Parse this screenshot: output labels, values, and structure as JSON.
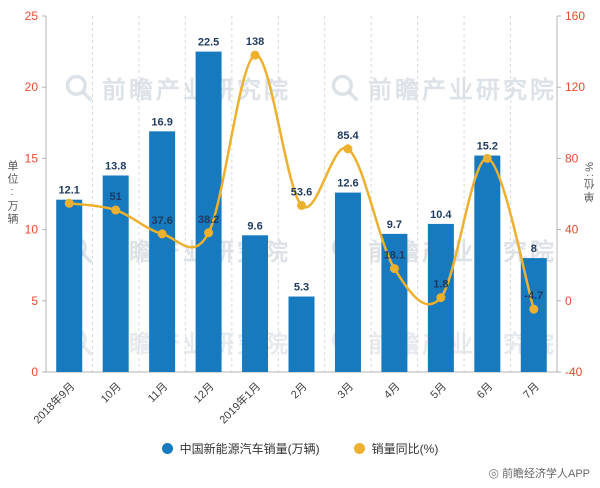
{
  "chart_data": {
    "type": "bar",
    "note": "combo bar + line chart",
    "categories": [
      "2018年9月",
      "10月",
      "11月",
      "12月",
      "2019年1月",
      "2月",
      "3月",
      "4月",
      "5月",
      "6月",
      "7月"
    ],
    "series": [
      {
        "name": "中国新能源汽车销量(万辆)",
        "type": "bar",
        "axis": "left",
        "color": "#1779be",
        "values": [
          12.1,
          13.8,
          16.9,
          22.5,
          9.6,
          5.3,
          12.6,
          9.7,
          10.4,
          15.2,
          8
        ],
        "labels": [
          "12.1",
          "13.8",
          "16.9",
          "22.5",
          "9.6",
          "5.3",
          "12.6",
          "9.7",
          "10.4",
          "15.2",
          "8"
        ]
      },
      {
        "name": "销量同比(%)",
        "type": "line",
        "axis": "right",
        "color": "#edb02f",
        "values": [
          54.8,
          51,
          37.6,
          38.2,
          138,
          53.6,
          85.4,
          18.1,
          1.8,
          80,
          -4.7
        ],
        "labels": [
          "",
          "51",
          "37.6",
          "38.2",
          "138",
          "53.6",
          "85.4",
          "18.1",
          "1.8",
          "",
          "-4.7"
        ]
      }
    ],
    "left_axis": {
      "label": "单位:万辆",
      "min": 0,
      "max": 25,
      "ticks": [
        0,
        5,
        10,
        15,
        20,
        25
      ]
    },
    "right_axis": {
      "label": "单位:%",
      "min": -40,
      "max": 160,
      "ticks": [
        -40,
        0,
        40,
        80,
        120,
        160
      ]
    },
    "grid": "vertical-dashed",
    "legend_position": "bottom",
    "tick_color": "#e6492e",
    "label_color": "#1f3a5f"
  },
  "legend": [
    {
      "label": "中国新能源汽车销量(万辆)",
      "color": "#1779be"
    },
    {
      "label": "销量同比(%)",
      "color": "#edb02f"
    }
  ],
  "watermark": {
    "text": "前瞻产业研究院"
  },
  "footer": {
    "icon": "◎",
    "credit": "前瞻经济学人APP"
  }
}
